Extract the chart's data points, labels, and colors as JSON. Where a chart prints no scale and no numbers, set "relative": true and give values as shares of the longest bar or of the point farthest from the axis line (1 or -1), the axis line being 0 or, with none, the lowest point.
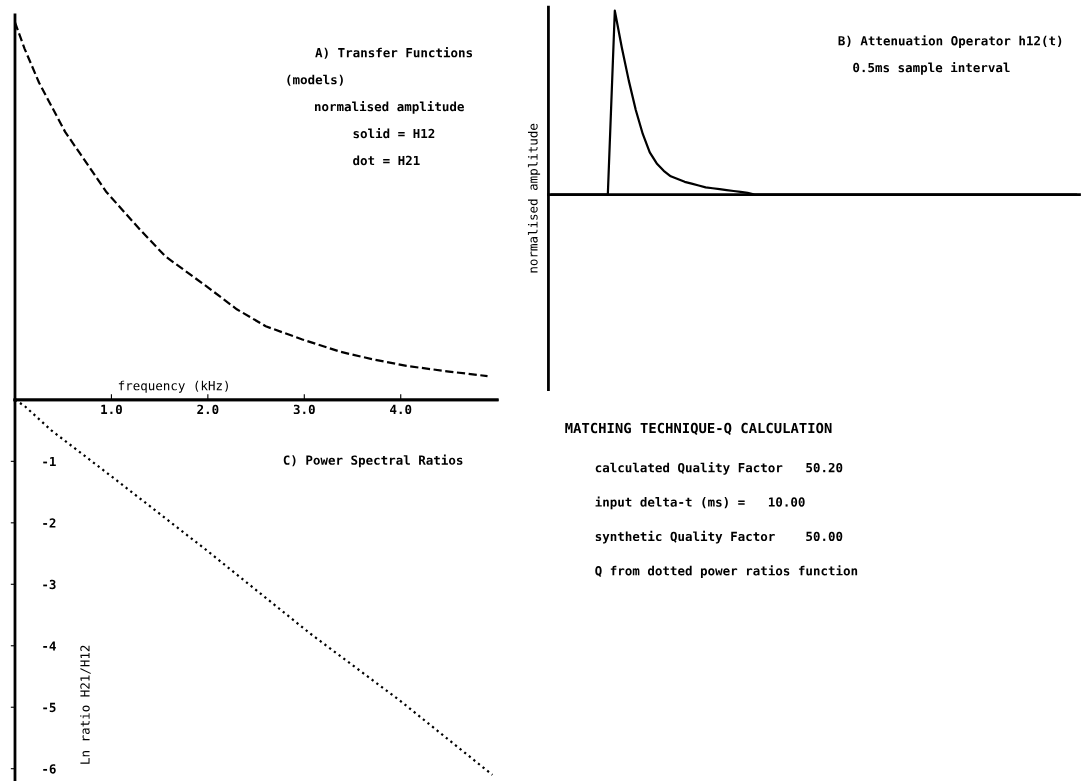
{
  "chart_data": [
    {
      "type": "line",
      "title": "A) Transfer Functions",
      "subtitle": "(models)",
      "annotations": [
        "normalised amplitude",
        "solid = H12",
        "dot = H21"
      ],
      "xlabel": "frequency (kHz)",
      "relative": true,
      "xlim": [
        0,
        5.0
      ],
      "line_style": "dashed",
      "x": [
        0,
        0.1,
        0.25,
        0.52,
        0.95,
        1.3,
        1.56,
        1.99,
        2.3,
        2.6,
        2.98,
        3.38,
        3.7,
        4.06,
        4.5,
        4.9
      ],
      "series": [
        {
          "color": "#000000",
          "values": [
            1,
            0.93,
            0.84,
            0.71,
            0.55,
            0.45,
            0.38,
            0.3,
            0.24,
            0.195,
            0.16,
            0.127,
            0.108,
            0.09,
            0.075,
            0.063
          ]
        }
      ]
    },
    {
      "type": "line",
      "title": "B) Attenuation Operator h12(t)",
      "subtitle": "0.5ms sample interval",
      "ylabel": "normalised amplitude",
      "relative": true,
      "categories": [
        null,
        null,
        null,
        null,
        null,
        null,
        null,
        null,
        null,
        null,
        null,
        null,
        null,
        null,
        null,
        null,
        null,
        null,
        null,
        null,
        null,
        null,
        null,
        null,
        null,
        null,
        null,
        null,
        null,
        null,
        null,
        null,
        null,
        null,
        null,
        null,
        null,
        null,
        null,
        null,
        null,
        null,
        null,
        null,
        null,
        null,
        null,
        null,
        null,
        null,
        null,
        null,
        null,
        null,
        null,
        null,
        null,
        null,
        null,
        null,
        null,
        null,
        null,
        null,
        null,
        null,
        null,
        null,
        null,
        null,
        null,
        null,
        null,
        null,
        null,
        null
      ],
      "series": [
        {
          "color": "#000000",
          "values": [
            0,
            0,
            0,
            0,
            0,
            0,
            0,
            0,
            0,
            1,
            0.8,
            0.62,
            0.46,
            0.33,
            0.23,
            0.17,
            0.13,
            0.1,
            0.085,
            0.07,
            0.06,
            0.05,
            0.04,
            0.035,
            0.03,
            0.025,
            0.02,
            0.015,
            0.01,
            0,
            0,
            0,
            0,
            0,
            0,
            0,
            0,
            0,
            0,
            0,
            0,
            0,
            0,
            0,
            0,
            0,
            0,
            0,
            0,
            0,
            0,
            0,
            0,
            0,
            0,
            0,
            0,
            0,
            0,
            0,
            0,
            0,
            0,
            0,
            0,
            0,
            0,
            0,
            0,
            0,
            0,
            0,
            0,
            0,
            0,
            0
          ]
        }
      ]
    },
    {
      "type": "line",
      "title": "C) Power Spectral Ratios",
      "ylabel": "Ln ratio H21/H12",
      "xlim": [
        0,
        5.0
      ],
      "xticks": [
        {
          "value": 1,
          "label": "1.0"
        },
        {
          "value": 2,
          "label": "2.0"
        },
        {
          "value": 3,
          "label": "3.0"
        },
        {
          "value": 4,
          "label": "4.0"
        }
      ],
      "ylim": [
        -6.2,
        0
      ],
      "yticks": [
        -1,
        -2,
        -3,
        -4,
        -5,
        -6
      ],
      "line_style": "dotted",
      "x": [
        0,
        0.1,
        0.38,
        1.03,
        1.99,
        3.06,
        3.99,
        4.95
      ],
      "series": [
        {
          "color": "#000000",
          "values": [
            0,
            -0.1,
            -0.5,
            -1.28,
            -2.45,
            -3.8,
            -4.89,
            -6.1
          ]
        }
      ]
    },
    {
      "type": "other",
      "title": "MATCHING TECHNIQUE-Q CALCULATION",
      "annotations": [
        "calculated Quality Factor   50.20",
        "input delta-t (ms) =   10.00",
        "synthetic Quality Factor    50.00",
        "Q from dotted power ratios function"
      ]
    }
  ]
}
